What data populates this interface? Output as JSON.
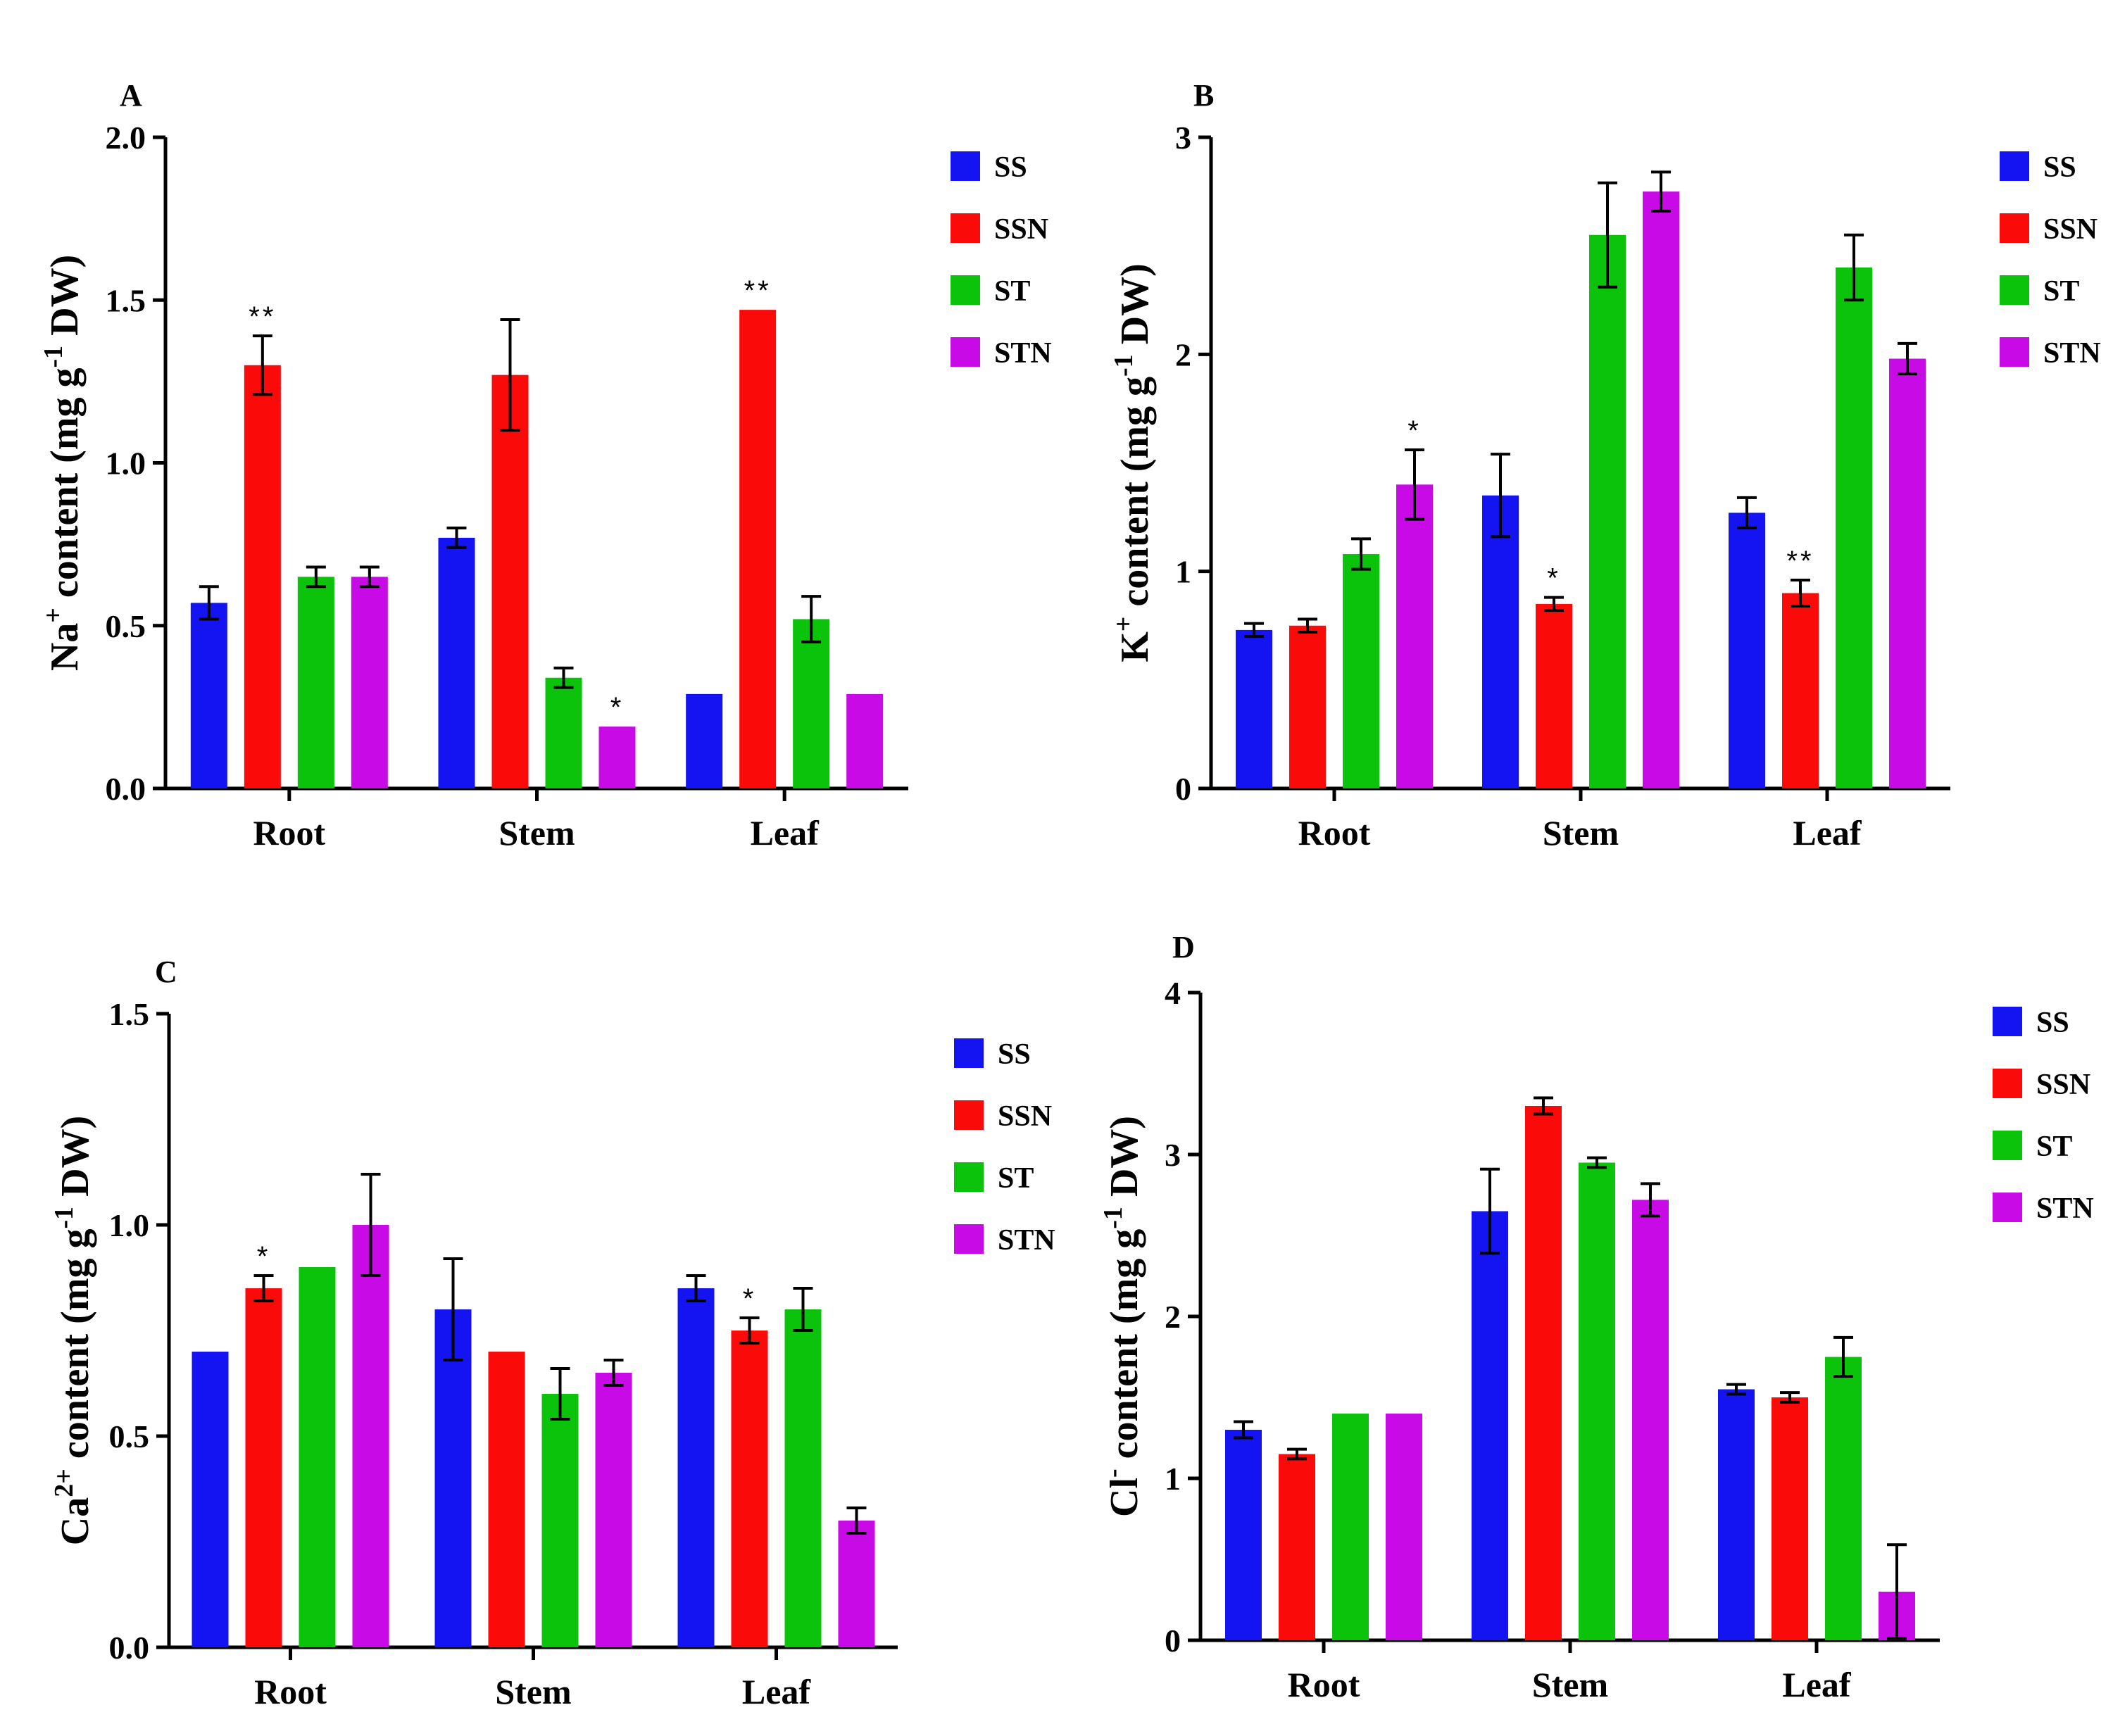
{
  "figure": {
    "groups": [
      "SS",
      "SSN",
      "ST",
      "STN"
    ],
    "colors": {
      "SS": "#1414f2",
      "SSN": "#fb0a0a",
      "ST": "#0ac30a",
      "STN": "#c80ae6"
    }
  },
  "chart_data": [
    {
      "panel": "A",
      "type": "bar",
      "title": "",
      "ylabel_main": "Na",
      "ylabel_sup": "+",
      "ylabel_rest": " content (mg g",
      "ylabel_unit_sup": "-1",
      "ylabel_end": " DW)",
      "categories": [
        "Root",
        "Stem",
        "Leaf"
      ],
      "ylim": [
        0,
        2.0
      ],
      "yticks": [
        0.0,
        0.5,
        1.0,
        1.5,
        2.0
      ],
      "ytick_labels": [
        "0.0",
        "0.5",
        "1.0",
        "1.5",
        "2.0"
      ],
      "series": [
        {
          "name": "SS",
          "values": [
            0.57,
            0.77,
            0.29
          ],
          "errors": [
            0.05,
            0.03,
            0
          ]
        },
        {
          "name": "SSN",
          "values": [
            1.3,
            1.27,
            1.47
          ],
          "errors": [
            0.09,
            0.17,
            0
          ]
        },
        {
          "name": "ST",
          "values": [
            0.65,
            0.34,
            0.52
          ],
          "errors": [
            0.03,
            0.03,
            0.07
          ]
        },
        {
          "name": "STN",
          "values": [
            0.65,
            0.19,
            0.29
          ],
          "errors": [
            0.03,
            0,
            0
          ]
        }
      ],
      "annotations": [
        {
          "series": "SSN",
          "category": "Root",
          "text": "**"
        },
        {
          "series": "STN",
          "category": "Stem",
          "text": "*"
        },
        {
          "series": "SSN",
          "category": "Leaf",
          "text": "**"
        }
      ],
      "legend": [
        "SS",
        "SSN",
        "ST",
        "STN"
      ]
    },
    {
      "panel": "B",
      "type": "bar",
      "title": "",
      "ylabel_main": "K",
      "ylabel_sup": "+",
      "ylabel_rest": " content (mg g",
      "ylabel_unit_sup": "-1",
      "ylabel_end": " DW)",
      "categories": [
        "Root",
        "Stem",
        "Leaf"
      ],
      "ylim": [
        0,
        3
      ],
      "yticks": [
        0,
        1,
        2,
        3
      ],
      "ytick_labels": [
        "0",
        "1",
        "2",
        "3"
      ],
      "series": [
        {
          "name": "SS",
          "values": [
            0.73,
            1.35,
            1.27
          ],
          "errors": [
            0.03,
            0.19,
            0.07
          ]
        },
        {
          "name": "SSN",
          "values": [
            0.75,
            0.85,
            0.9
          ],
          "errors": [
            0.03,
            0.03,
            0.06
          ]
        },
        {
          "name": "ST",
          "values": [
            1.08,
            2.55,
            2.4
          ],
          "errors": [
            0.07,
            0.24,
            0.15
          ]
        },
        {
          "name": "STN",
          "values": [
            1.4,
            2.75,
            1.98
          ],
          "errors": [
            0.16,
            0.09,
            0.07
          ]
        }
      ],
      "annotations": [
        {
          "series": "STN",
          "category": "Root",
          "text": "*"
        },
        {
          "series": "SSN",
          "category": "Stem",
          "text": "*"
        },
        {
          "series": "SSN",
          "category": "Leaf",
          "text": "**"
        }
      ],
      "legend": [
        "SS",
        "SSN",
        "ST",
        "STN"
      ]
    },
    {
      "panel": "C",
      "type": "bar",
      "title": "",
      "ylabel_main": "Ca",
      "ylabel_sup": "2+",
      "ylabel_rest": " content (mg g",
      "ylabel_unit_sup": "-1",
      "ylabel_end": " DW)",
      "categories": [
        "Root",
        "Stem",
        "Leaf"
      ],
      "ylim": [
        0,
        1.5
      ],
      "yticks": [
        0.0,
        0.5,
        1.0,
        1.5
      ],
      "ytick_labels": [
        "0.0",
        "0.5",
        "1.0",
        "1.5"
      ],
      "series": [
        {
          "name": "SS",
          "values": [
            0.7,
            0.8,
            0.85
          ],
          "errors": [
            0,
            0.12,
            0.03
          ]
        },
        {
          "name": "SSN",
          "values": [
            0.85,
            0.7,
            0.75
          ],
          "errors": [
            0.03,
            0,
            0.03
          ]
        },
        {
          "name": "ST",
          "values": [
            0.9,
            0.6,
            0.8
          ],
          "errors": [
            0,
            0.06,
            0.05
          ]
        },
        {
          "name": "STN",
          "values": [
            1.0,
            0.65,
            0.3
          ],
          "errors": [
            0.12,
            0.03,
            0.03
          ]
        }
      ],
      "annotations": [
        {
          "series": "SSN",
          "category": "Root",
          "text": "*"
        },
        {
          "series": "SSN",
          "category": "Leaf",
          "text": "*"
        }
      ],
      "legend": [
        "SS",
        "SSN",
        "ST",
        "STN"
      ]
    },
    {
      "panel": "D",
      "type": "bar",
      "title": "",
      "ylabel_main": "Cl",
      "ylabel_sup": "-",
      "ylabel_rest": " content (mg g",
      "ylabel_unit_sup": "-1",
      "ylabel_end": " DW)",
      "categories": [
        "Root",
        "Stem",
        "Leaf"
      ],
      "ylim": [
        0,
        4
      ],
      "yticks": [
        0,
        1,
        2,
        3,
        4
      ],
      "ytick_labels": [
        "0",
        "1",
        "2",
        "3",
        "4"
      ],
      "series": [
        {
          "name": "SS",
          "values": [
            1.3,
            2.65,
            1.55
          ],
          "errors": [
            0.05,
            0.26,
            0.03
          ]
        },
        {
          "name": "SSN",
          "values": [
            1.15,
            3.3,
            1.5
          ],
          "errors": [
            0.03,
            0.05,
            0.03
          ]
        },
        {
          "name": "ST",
          "values": [
            1.4,
            2.95,
            1.75
          ],
          "errors": [
            0,
            0.03,
            0.12
          ]
        },
        {
          "name": "STN",
          "values": [
            1.4,
            2.72,
            0.3
          ],
          "errors": [
            0,
            0.1,
            0.29
          ]
        }
      ],
      "annotations": [],
      "legend": [
        "SS",
        "SSN",
        "ST",
        "STN"
      ]
    }
  ]
}
